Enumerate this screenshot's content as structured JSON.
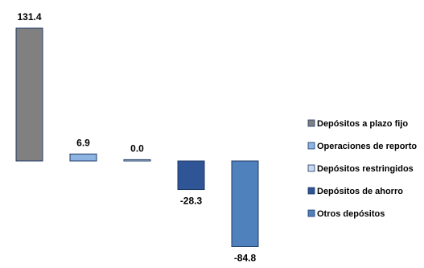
{
  "chart_data": {
    "type": "bar",
    "categories": [
      "Depósitos a plazo fijo",
      "Operaciones de reporto",
      "Depósitos restringidos",
      "Depósitos de ahorro",
      "Otros depósitos"
    ],
    "values": [
      131.4,
      6.9,
      0.0,
      -28.3,
      -84.8
    ],
    "data_labels": [
      "131.4",
      "6.9",
      "0.0",
      "-28.3",
      "-84.8"
    ],
    "colors": [
      "#808080",
      "#8EB4E3",
      "#C6D9F1",
      "#2F5597",
      "#4F81BD"
    ],
    "legend": {
      "position": "right"
    },
    "grid": false,
    "title": "",
    "xlabel": "",
    "ylabel": ""
  }
}
